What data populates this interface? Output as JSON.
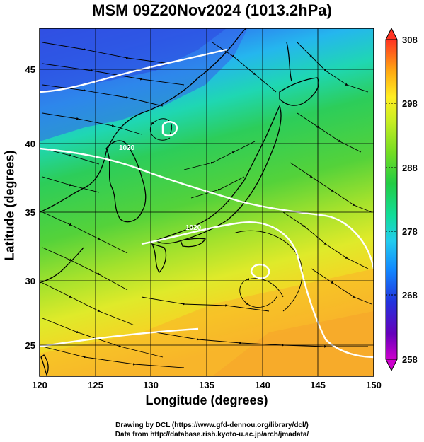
{
  "title": "MSM 09Z20Nov2024 (1013.2hPa)",
  "xlabel": "Longitude (degrees)",
  "ylabel": "Latitude  (degrees)",
  "credits": [
    "Drawing by DCL (https://www.gfd-dennou.org/library/dcl/)",
    "Data from http://database.rish.kyoto-u.ac.jp/arch/jmadata/"
  ],
  "map": {
    "lon_range": [
      120,
      150
    ],
    "lat_range": [
      22.4,
      47.6
    ],
    "lon_ticks": [
      "120",
      "125",
      "130",
      "135",
      "140",
      "145",
      "150"
    ],
    "lat_ticks": [
      "25",
      "30",
      "35",
      "40",
      "45"
    ],
    "colorbar": {
      "min": 258,
      "max": 308,
      "labels": [
        "308",
        "298",
        "288",
        "278",
        "268",
        "258"
      ],
      "stops": [
        "#cc00cc",
        "#5500bb",
        "#2233dd",
        "#1188ff",
        "#22ccee",
        "#11dd99",
        "#22cc44",
        "#77dd22",
        "#ccee22",
        "#ffee22",
        "#ffbb11",
        "#ff7711",
        "#ff2222"
      ]
    },
    "contours": [
      {
        "label": "1020",
        "color": "#ffffff"
      },
      {
        "label": "1020",
        "color": "#ffffff"
      }
    ],
    "colors": {
      "cold": "#3355ee",
      "cool": "#22bbee",
      "mid": "#33cc55",
      "warm": "#ddee33",
      "hot": "#ffaa22"
    }
  }
}
